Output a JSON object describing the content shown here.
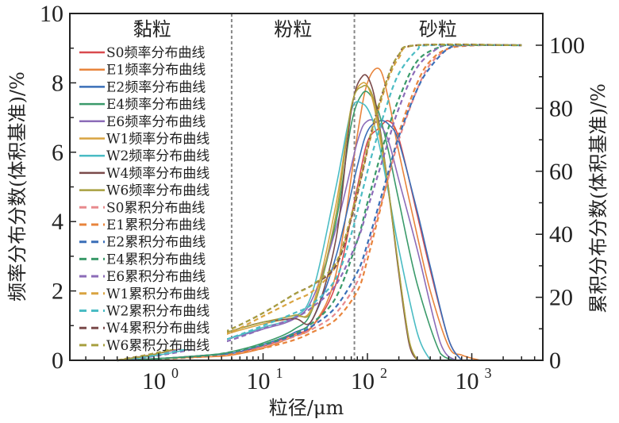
{
  "chart_data": {
    "type": "line",
    "title": "",
    "xlabel": "粒径/μm",
    "ylabel_left": "频率分布分数(体积基准)/%",
    "ylabel_right": "累积分布分数(体积基准)/%",
    "xscale": "log",
    "xlim": [
      0.15,
      3000
    ],
    "ylim_left": [
      0,
      10
    ],
    "ylim_right": [
      0,
      100
    ],
    "x_tick_labels": [
      {
        "base": "10",
        "exp": "0",
        "value": 1
      },
      {
        "base": "10",
        "exp": "1",
        "value": 10
      },
      {
        "base": "10",
        "exp": "2",
        "value": 100
      },
      {
        "base": "10",
        "exp": "3",
        "value": 1000
      }
    ],
    "y_left_ticks": [
      "0",
      "2",
      "4",
      "6",
      "8",
      "10"
    ],
    "y_right_ticks": [
      "0",
      "20",
      "40",
      "60",
      "80",
      "100"
    ],
    "grid": false,
    "legend_position": "top-left",
    "regions": [
      {
        "label": "黏粒",
        "from": 0.15,
        "to": 5
      },
      {
        "label": "粉粒",
        "from": 5,
        "to": 75
      },
      {
        "label": "砂粒",
        "from": 75,
        "to": 3000
      }
    ],
    "dividers": [
      5,
      75
    ],
    "series": [
      {
        "name": "S0频率分布曲线",
        "kind": "frequency",
        "axis": "left",
        "color": "#d94a4f",
        "x": [
          0.4,
          1,
          3,
          5,
          10,
          20,
          30,
          50,
          80,
          100,
          130,
          160,
          200,
          300,
          400,
          600,
          800
        ],
        "y": [
          0,
          0.05,
          0.15,
          0.2,
          0.4,
          0.75,
          1.0,
          2.2,
          5.0,
          6.3,
          6.7,
          6.9,
          6.4,
          4.2,
          2.6,
          0.6,
          0
        ]
      },
      {
        "name": "E1频率分布曲线",
        "kind": "frequency",
        "axis": "left",
        "color": "#e8843c",
        "x": [
          0.4,
          1,
          3,
          5,
          10,
          20,
          30,
          50,
          80,
          100,
          130,
          160,
          200,
          300,
          400,
          600,
          800,
          1200
        ],
        "y": [
          0,
          0.05,
          0.1,
          0.15,
          0.35,
          0.7,
          1.0,
          2.5,
          6.5,
          8.0,
          8.4,
          7.5,
          6.0,
          3.6,
          2.0,
          0.4,
          0.15,
          0
        ]
      },
      {
        "name": "E2频率分布曲线",
        "kind": "frequency",
        "axis": "left",
        "color": "#3a6fb8",
        "x": [
          0.4,
          1,
          3,
          5,
          10,
          20,
          30,
          50,
          80,
          100,
          130,
          160,
          200,
          300,
          400,
          600,
          800
        ],
        "y": [
          0,
          0.05,
          0.15,
          0.2,
          0.45,
          0.8,
          1.2,
          3.0,
          5.6,
          6.6,
          6.9,
          6.8,
          6.3,
          4.3,
          2.7,
          0.6,
          0
        ]
      },
      {
        "name": "E4频率分布曲线",
        "kind": "frequency",
        "axis": "left",
        "color": "#3a9a6a",
        "x": [
          0.4,
          1,
          3,
          5,
          10,
          20,
          30,
          50,
          70,
          90,
          110,
          130,
          160,
          200,
          300,
          500,
          700
        ],
        "y": [
          0,
          0.05,
          0.15,
          0.25,
          0.5,
          0.9,
          1.5,
          4.0,
          6.8,
          7.7,
          7.6,
          7.1,
          6.0,
          4.6,
          2.2,
          0.2,
          0
        ]
      },
      {
        "name": "E6频率分布曲线",
        "kind": "frequency",
        "axis": "left",
        "color": "#8c6cb8",
        "x": [
          0.4,
          1,
          3,
          5,
          10,
          20,
          30,
          50,
          80,
          100,
          130,
          160,
          200,
          300,
          500,
          700
        ],
        "y": [
          0,
          0.2,
          0.5,
          0.65,
          0.9,
          1.2,
          1.8,
          3.8,
          6.3,
          6.9,
          6.8,
          6.3,
          5.2,
          3.2,
          0.5,
          0
        ]
      },
      {
        "name": "W1频率分布曲线",
        "kind": "frequency",
        "axis": "left",
        "color": "#d9a441",
        "x": [
          0.4,
          1,
          3,
          5,
          10,
          20,
          30,
          50,
          70,
          90,
          110,
          130,
          160,
          200,
          250,
          300
        ],
        "y": [
          0,
          0.2,
          0.6,
          0.8,
          1.05,
          1.25,
          1.6,
          4.5,
          7.3,
          8.0,
          7.6,
          6.5,
          4.8,
          2.6,
          0.6,
          0
        ]
      },
      {
        "name": "W2频率分布曲线",
        "kind": "frequency",
        "axis": "left",
        "color": "#4bbcc4",
        "x": [
          0.4,
          1,
          3,
          5,
          10,
          20,
          30,
          50,
          70,
          90,
          110,
          130,
          160,
          200,
          300,
          400
        ],
        "y": [
          0,
          0.15,
          0.45,
          0.65,
          0.95,
          1.25,
          2.0,
          5.0,
          7.2,
          7.4,
          7.0,
          6.2,
          4.8,
          3.2,
          0.8,
          0
        ]
      },
      {
        "name": "W4频率分布曲线",
        "kind": "frequency",
        "axis": "left",
        "color": "#7a4a4a",
        "x": [
          0.4,
          1,
          3,
          5,
          10,
          20,
          30,
          50,
          70,
          90,
          110,
          130,
          160,
          200,
          250,
          300
        ],
        "y": [
          0,
          0.2,
          0.65,
          0.85,
          1.1,
          1.2,
          1.2,
          3.5,
          7.2,
          8.2,
          7.9,
          6.8,
          4.9,
          2.5,
          0.5,
          0
        ]
      },
      {
        "name": "W6频率分布曲线",
        "kind": "frequency",
        "axis": "left",
        "color": "#a8a040",
        "x": [
          0.4,
          1,
          3,
          5,
          10,
          20,
          30,
          50,
          70,
          90,
          110,
          130,
          160,
          200,
          250,
          300
        ],
        "y": [
          0,
          0.2,
          0.65,
          0.85,
          1.1,
          1.3,
          1.5,
          4.2,
          7.3,
          7.9,
          7.7,
          6.7,
          4.9,
          2.6,
          0.6,
          0
        ]
      },
      {
        "name": "S0累积分布曲线",
        "kind": "cumulative",
        "axis": "right",
        "color": "#e88a8e",
        "x": [
          0.4,
          1,
          3,
          5,
          10,
          20,
          30,
          50,
          80,
          100,
          150,
          200,
          300,
          400,
          600,
          900,
          3000
        ],
        "y": [
          0,
          0.5,
          1.5,
          2.5,
          4.5,
          7.5,
          10,
          15,
          25,
          35,
          55,
          70,
          86,
          94,
          99,
          100,
          100
        ]
      },
      {
        "name": "E1累积分布曲线",
        "kind": "cumulative",
        "axis": "right",
        "color": "#e8843c",
        "x": [
          0.4,
          1,
          3,
          5,
          10,
          20,
          30,
          50,
          80,
          100,
          150,
          200,
          300,
          400,
          600,
          1200,
          3000
        ],
        "y": [
          0,
          0.4,
          1.2,
          2.0,
          3.8,
          6.5,
          9,
          13,
          22,
          32,
          55,
          72,
          88,
          95,
          99,
          100,
          100
        ]
      },
      {
        "name": "E2累积分布曲线",
        "kind": "cumulative",
        "axis": "right",
        "color": "#3a6fb8",
        "x": [
          0.4,
          1,
          3,
          5,
          10,
          20,
          30,
          50,
          80,
          100,
          150,
          200,
          300,
          400,
          600,
          900,
          3000
        ],
        "y": [
          0,
          0.5,
          1.5,
          2.5,
          4.8,
          8,
          11,
          17,
          28,
          37,
          57,
          71,
          86,
          93,
          99,
          100,
          100
        ]
      },
      {
        "name": "E4累积分布曲线",
        "kind": "cumulative",
        "axis": "right",
        "color": "#3a9a6a",
        "x": [
          0.4,
          1,
          3,
          5,
          10,
          20,
          30,
          50,
          80,
          100,
          150,
          200,
          300,
          500,
          700,
          3000
        ],
        "y": [
          0,
          0.5,
          1.6,
          2.7,
          5,
          8.5,
          12,
          20,
          38,
          50,
          71,
          83,
          95,
          99.5,
          100,
          100
        ]
      },
      {
        "name": "E6累积分布曲线",
        "kind": "cumulative",
        "axis": "right",
        "color": "#8c6cb8",
        "x": [
          0.4,
          1,
          3,
          5,
          10,
          20,
          30,
          50,
          80,
          100,
          150,
          200,
          300,
          500,
          700,
          3000
        ],
        "y": [
          0,
          1.5,
          4.5,
          6.5,
          10,
          13.5,
          17,
          24,
          38,
          48,
          67,
          80,
          93,
          99.5,
          100,
          100
        ]
      },
      {
        "name": "W1累积分布曲线",
        "kind": "cumulative",
        "axis": "right",
        "color": "#d9a441",
        "x": [
          0.4,
          1,
          3,
          5,
          10,
          20,
          30,
          50,
          70,
          90,
          110,
          150,
          200,
          300,
          3000
        ],
        "y": [
          0,
          2.5,
          6.5,
          9,
          14,
          19,
          22,
          30,
          45,
          60,
          72,
          87,
          96,
          100,
          100
        ]
      },
      {
        "name": "W2累积分布曲线",
        "kind": "cumulative",
        "axis": "right",
        "color": "#4bbcc4",
        "x": [
          0.4,
          1,
          3,
          5,
          10,
          20,
          30,
          50,
          70,
          90,
          110,
          150,
          200,
          300,
          400,
          3000
        ],
        "y": [
          0,
          1.8,
          5,
          7.2,
          11,
          15,
          18,
          26,
          40,
          54,
          65,
          80,
          91,
          98.5,
          100,
          100
        ]
      },
      {
        "name": "W4累积分布曲线",
        "kind": "cumulative",
        "axis": "right",
        "color": "#7a4a4a",
        "x": [
          0.4,
          1,
          3,
          5,
          10,
          20,
          30,
          50,
          70,
          90,
          110,
          150,
          200,
          300,
          3000
        ],
        "y": [
          0,
          2.5,
          7,
          10,
          15,
          21,
          24,
          30,
          45,
          60,
          73,
          88,
          97,
          100,
          100
        ]
      },
      {
        "name": "W6累积分布曲线",
        "kind": "cumulative",
        "axis": "right",
        "color": "#a8a040",
        "x": [
          0.4,
          1,
          3,
          5,
          10,
          20,
          30,
          50,
          70,
          90,
          110,
          150,
          200,
          300,
          3000
        ],
        "y": [
          0,
          2.5,
          7,
          10,
          15,
          21,
          24,
          31,
          46,
          61,
          73,
          88,
          97,
          100,
          100
        ]
      }
    ]
  }
}
